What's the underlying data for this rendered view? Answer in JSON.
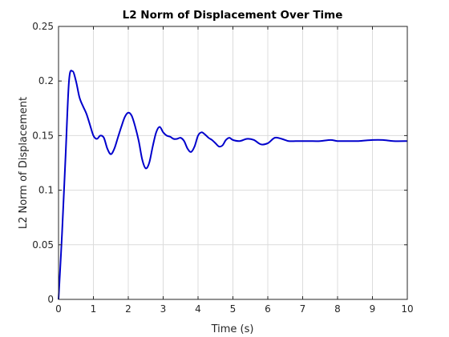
{
  "chart_data": {
    "type": "line",
    "title": "L2 Norm of Displacement Over Time",
    "xlabel": "Time (s)",
    "ylabel": "L2 Norm of Displacement",
    "xlim": [
      0,
      10
    ],
    "ylim": [
      0,
      0.25
    ],
    "xticks": [
      0,
      1,
      2,
      3,
      4,
      5,
      6,
      7,
      8,
      9,
      10
    ],
    "yticks": [
      0,
      0.05,
      0.1,
      0.15,
      0.2,
      0.25
    ],
    "xtick_labels": [
      "0",
      "1",
      "2",
      "3",
      "4",
      "5",
      "6",
      "7",
      "8",
      "9",
      "10"
    ],
    "ytick_labels": [
      "0",
      "0.05",
      "0.1",
      "0.15",
      "0.2",
      "0.25"
    ],
    "grid": true,
    "line_color": "#0000cc",
    "series": [
      {
        "x": [
          0,
          0.1,
          0.2,
          0.3,
          0.4,
          0.5,
          0.6,
          0.7,
          0.8,
          0.9,
          1.0,
          1.1,
          1.2,
          1.3,
          1.4,
          1.5,
          1.6,
          1.7,
          1.8,
          1.9,
          2.0,
          2.1,
          2.2,
          2.3,
          2.4,
          2.5,
          2.6,
          2.7,
          2.8,
          2.9,
          3.0,
          3.1,
          3.2,
          3.3,
          3.4,
          3.5,
          3.6,
          3.7,
          3.8,
          3.9,
          4.0,
          4.1,
          4.2,
          4.3,
          4.4,
          4.5,
          4.6,
          4.7,
          4.8,
          4.9,
          5.0,
          5.2,
          5.4,
          5.6,
          5.8,
          6.0,
          6.2,
          6.4,
          6.6,
          6.8,
          7.0,
          7.2,
          7.5,
          7.8,
          8.0,
          8.3,
          8.6,
          9.0,
          9.3,
          9.6,
          10.0
        ],
        "values": [
          0,
          0.06,
          0.13,
          0.2,
          0.209,
          0.2,
          0.185,
          0.177,
          0.17,
          0.16,
          0.15,
          0.147,
          0.15,
          0.148,
          0.138,
          0.133,
          0.138,
          0.148,
          0.158,
          0.167,
          0.171,
          0.168,
          0.158,
          0.145,
          0.128,
          0.12,
          0.125,
          0.14,
          0.153,
          0.158,
          0.153,
          0.15,
          0.149,
          0.147,
          0.147,
          0.148,
          0.145,
          0.138,
          0.135,
          0.14,
          0.15,
          0.153,
          0.151,
          0.148,
          0.146,
          0.143,
          0.14,
          0.141,
          0.146,
          0.148,
          0.146,
          0.145,
          0.147,
          0.146,
          0.142,
          0.143,
          0.148,
          0.147,
          0.145,
          0.145,
          0.145,
          0.145,
          0.145,
          0.146,
          0.145,
          0.145,
          0.145,
          0.146,
          0.146,
          0.145,
          0.145
        ]
      }
    ]
  }
}
